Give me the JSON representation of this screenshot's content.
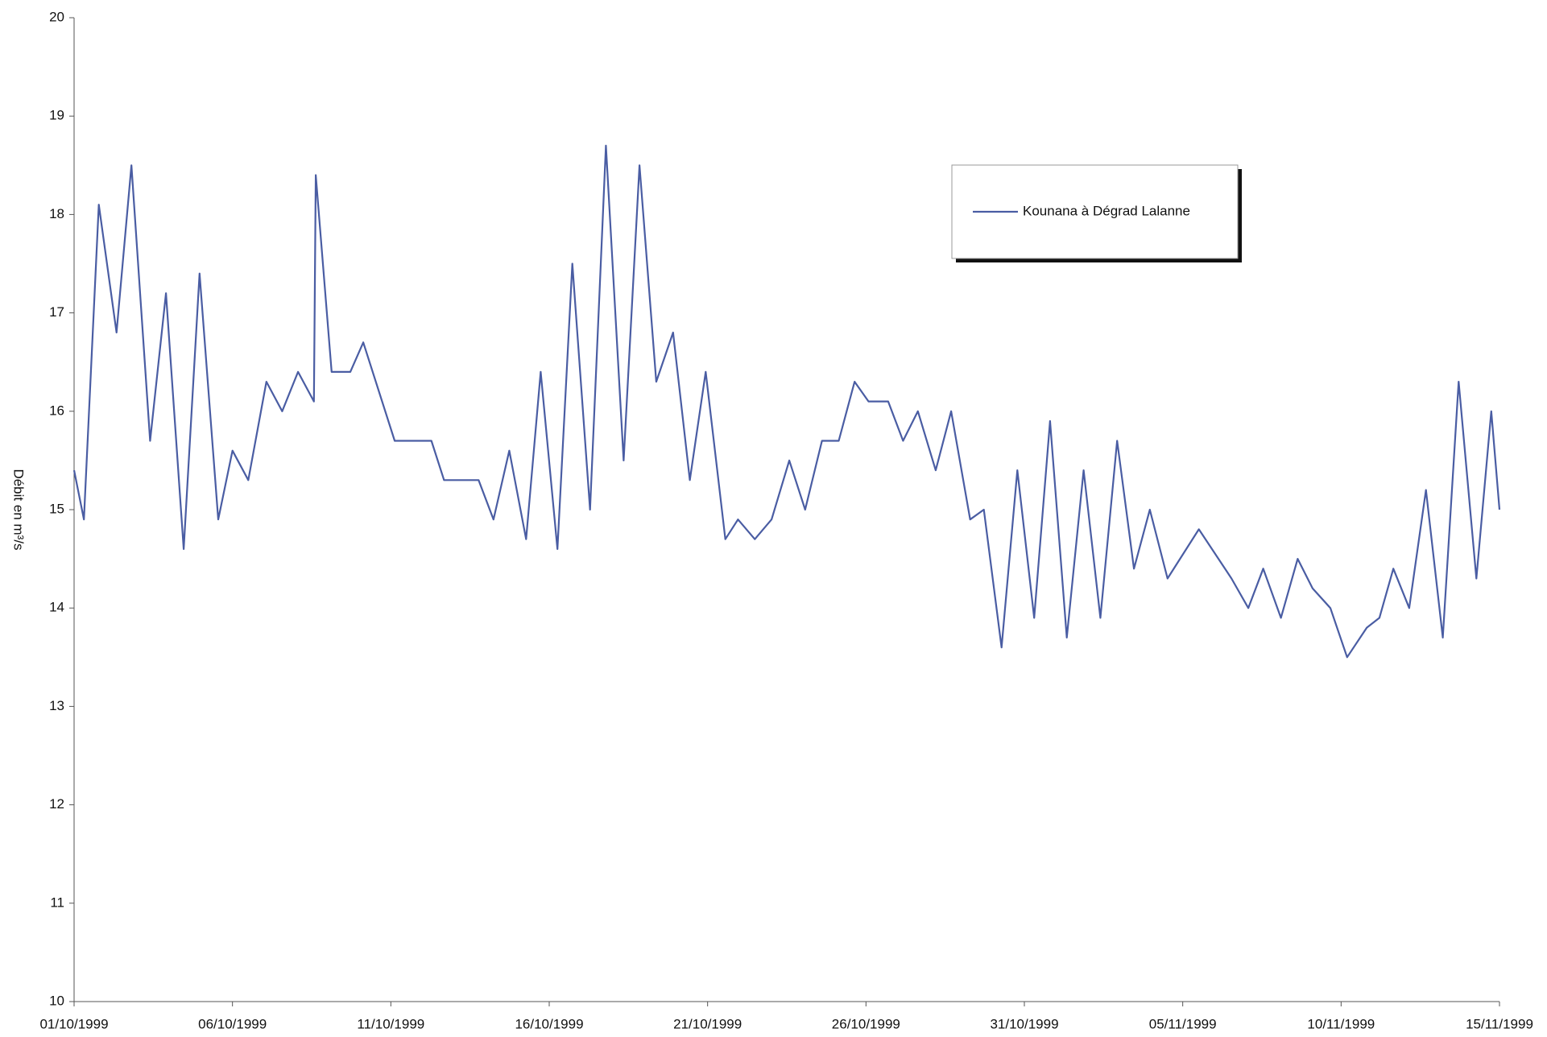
{
  "chart_data": {
    "type": "line",
    "y_label": "Débit en m³/s",
    "series": [
      {
        "name": "Kounana à Dégrad Lalanne",
        "color": "#4a5da3",
        "x": [
          0,
          0.31,
          0.78,
          1.34,
          1.81,
          2.4,
          2.9,
          3.46,
          3.96,
          4.55,
          5.0,
          5.5,
          6.07,
          6.57,
          7.07,
          7.57,
          7.63,
          8.13,
          8.72,
          9.13,
          10.12,
          11.28,
          11.68,
          12.77,
          13.24,
          13.74,
          14.27,
          14.73,
          15.26,
          15.73,
          16.29,
          16.79,
          17.35,
          17.85,
          18.38,
          18.91,
          19.44,
          19.94,
          20.56,
          20.96,
          21.49,
          22.02,
          22.58,
          23.08,
          23.61,
          24.14,
          24.64,
          25.08,
          25.7,
          26.17,
          26.64,
          27.2,
          27.69,
          28.29,
          28.72,
          29.28,
          29.78,
          30.31,
          30.81,
          31.34,
          31.87,
          32.4,
          32.93,
          33.46,
          33.96,
          34.52,
          35.51,
          36.54,
          37.07,
          37.54,
          38.1,
          38.63,
          39.1,
          39.66,
          40.19,
          40.81,
          41.21,
          41.65,
          42.15,
          42.68,
          43.21,
          43.71,
          44.27,
          44.74,
          45.0
        ],
        "values": [
          15.4,
          14.9,
          18.1,
          16.8,
          18.5,
          15.7,
          17.2,
          14.6,
          17.4,
          14.9,
          15.6,
          15.3,
          16.3,
          16.0,
          16.4,
          16.1,
          18.4,
          16.4,
          16.4,
          16.7,
          15.7,
          15.7,
          15.3,
          15.3,
          14.9,
          15.6,
          14.7,
          16.4,
          14.6,
          17.5,
          15.0,
          18.7,
          15.5,
          18.5,
          16.3,
          16.8,
          15.3,
          16.4,
          14.7,
          14.9,
          14.7,
          14.9,
          15.5,
          15.0,
          15.7,
          15.7,
          16.3,
          16.1,
          16.1,
          15.7,
          16.0,
          15.4,
          16.0,
          14.9,
          15.0,
          13.6,
          15.4,
          13.9,
          15.9,
          13.7,
          15.4,
          13.9,
          15.7,
          14.4,
          15.0,
          14.3,
          14.8,
          14.3,
          14.0,
          14.4,
          13.9,
          14.5,
          14.2,
          14.0,
          13.5,
          13.8,
          13.9,
          14.4,
          14.0,
          15.2,
          13.7,
          16.3,
          14.3,
          16.0,
          15.0
        ]
      }
    ],
    "xlim": [
      0,
      45
    ],
    "xticks": [
      {
        "value": 0,
        "label": "01/10/1999"
      },
      {
        "value": 5,
        "label": "06/10/1999"
      },
      {
        "value": 10,
        "label": "11/10/1999"
      },
      {
        "value": 15,
        "label": "16/10/1999"
      },
      {
        "value": 20,
        "label": "21/10/1999"
      },
      {
        "value": 25,
        "label": "26/10/1999"
      },
      {
        "value": 30,
        "label": "31/10/1999"
      },
      {
        "value": 35,
        "label": "05/11/1999"
      },
      {
        "value": 40,
        "label": "10/11/1999"
      },
      {
        "value": 45,
        "label": "15/11/1999"
      }
    ],
    "ylim": [
      10,
      20
    ],
    "yticks": [
      10,
      11,
      12,
      13,
      14,
      15,
      16,
      17,
      18,
      19,
      20
    ],
    "grid": false
  }
}
